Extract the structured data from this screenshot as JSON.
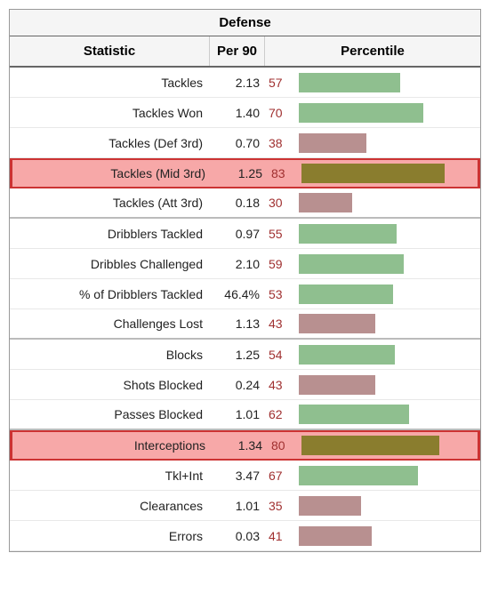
{
  "title": "Defense",
  "columns": {
    "stat": "Statistic",
    "per90": "Per 90",
    "pct": "Percentile"
  },
  "bar_max": 100,
  "colors": {
    "green": "#8fbf8f",
    "mauve": "#b89090",
    "olive": "#8a7d2e",
    "highlight_bg": "#f7a8a8",
    "highlight_border": "#cc3333",
    "pct_text": "#a03030"
  },
  "rows": [
    {
      "stat": "Tackles",
      "per90": "2.13",
      "pct": "57",
      "bar_pct": 57,
      "color": "#8fbf8f",
      "highlighted": false,
      "group_end": false
    },
    {
      "stat": "Tackles Won",
      "per90": "1.40",
      "pct": "70",
      "bar_pct": 70,
      "color": "#8fbf8f",
      "highlighted": false,
      "group_end": false
    },
    {
      "stat": "Tackles (Def 3rd)",
      "per90": "0.70",
      "pct": "38",
      "bar_pct": 38,
      "color": "#b89090",
      "highlighted": false,
      "group_end": false
    },
    {
      "stat": "Tackles (Mid 3rd)",
      "per90": "1.25",
      "pct": "83",
      "bar_pct": 83,
      "color": "#8a7d2e",
      "highlighted": true,
      "group_end": false
    },
    {
      "stat": "Tackles (Att 3rd)",
      "per90": "0.18",
      "pct": "30",
      "bar_pct": 30,
      "color": "#b89090",
      "highlighted": false,
      "group_end": true
    },
    {
      "stat": "Dribblers Tackled",
      "per90": "0.97",
      "pct": "55",
      "bar_pct": 55,
      "color": "#8fbf8f",
      "highlighted": false,
      "group_end": false
    },
    {
      "stat": "Dribbles Challenged",
      "per90": "2.10",
      "pct": "59",
      "bar_pct": 59,
      "color": "#8fbf8f",
      "highlighted": false,
      "group_end": false
    },
    {
      "stat": "% of Dribblers Tackled",
      "per90": "46.4%",
      "pct": "53",
      "bar_pct": 53,
      "color": "#8fbf8f",
      "highlighted": false,
      "group_end": false
    },
    {
      "stat": "Challenges Lost",
      "per90": "1.13",
      "pct": "43",
      "bar_pct": 43,
      "color": "#b89090",
      "highlighted": false,
      "group_end": true
    },
    {
      "stat": "Blocks",
      "per90": "1.25",
      "pct": "54",
      "bar_pct": 54,
      "color": "#8fbf8f",
      "highlighted": false,
      "group_end": false
    },
    {
      "stat": "Shots Blocked",
      "per90": "0.24",
      "pct": "43",
      "bar_pct": 43,
      "color": "#b89090",
      "highlighted": false,
      "group_end": false
    },
    {
      "stat": "Passes Blocked",
      "per90": "1.01",
      "pct": "62",
      "bar_pct": 62,
      "color": "#8fbf8f",
      "highlighted": false,
      "group_end": true
    },
    {
      "stat": "Interceptions",
      "per90": "1.34",
      "pct": "80",
      "bar_pct": 80,
      "color": "#8a7d2e",
      "highlighted": true,
      "group_end": false
    },
    {
      "stat": "Tkl+Int",
      "per90": "3.47",
      "pct": "67",
      "bar_pct": 67,
      "color": "#8fbf8f",
      "highlighted": false,
      "group_end": false
    },
    {
      "stat": "Clearances",
      "per90": "1.01",
      "pct": "35",
      "bar_pct": 35,
      "color": "#b89090",
      "highlighted": false,
      "group_end": false
    },
    {
      "stat": "Errors",
      "per90": "0.03",
      "pct": "41",
      "bar_pct": 41,
      "color": "#b89090",
      "highlighted": false,
      "group_end": false
    }
  ]
}
